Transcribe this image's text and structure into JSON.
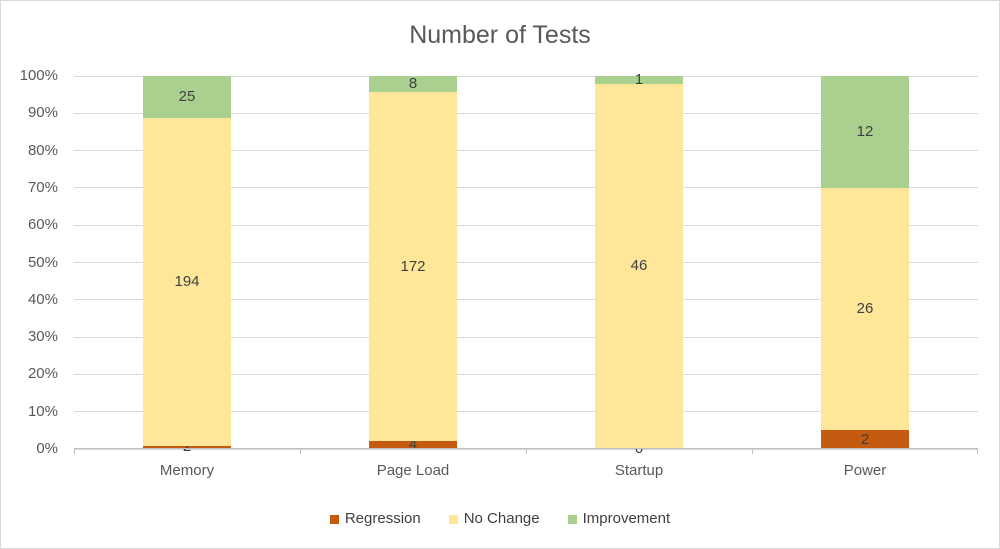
{
  "chart_data": {
    "type": "bar",
    "variant": "stacked-100-percent",
    "title": "Number of Tests",
    "categories": [
      "Memory",
      "Page Load",
      "Startup",
      "Power"
    ],
    "series": [
      {
        "name": "Regression",
        "color": "#C55A11",
        "values": [
          2,
          4,
          0,
          2
        ]
      },
      {
        "name": "No Change",
        "color": "#FFE699",
        "values": [
          194,
          172,
          46,
          26
        ]
      },
      {
        "name": "Improvement",
        "color": "#A9D08E",
        "values": [
          25,
          8,
          1,
          12
        ]
      }
    ],
    "y_ticks": [
      "0%",
      "10%",
      "20%",
      "30%",
      "40%",
      "50%",
      "60%",
      "70%",
      "80%",
      "90%",
      "100%"
    ],
    "ylim": [
      0,
      100
    ],
    "grid": true,
    "legend_position": "bottom",
    "colors": {
      "gridline": "#D9D9D9",
      "axis_line": "#BFBFBF",
      "frame_border": "#D9D9D9",
      "title_text": "#595959",
      "axis_text": "#595959",
      "data_label_text": "#404040",
      "background": "#FFFFFF"
    }
  }
}
